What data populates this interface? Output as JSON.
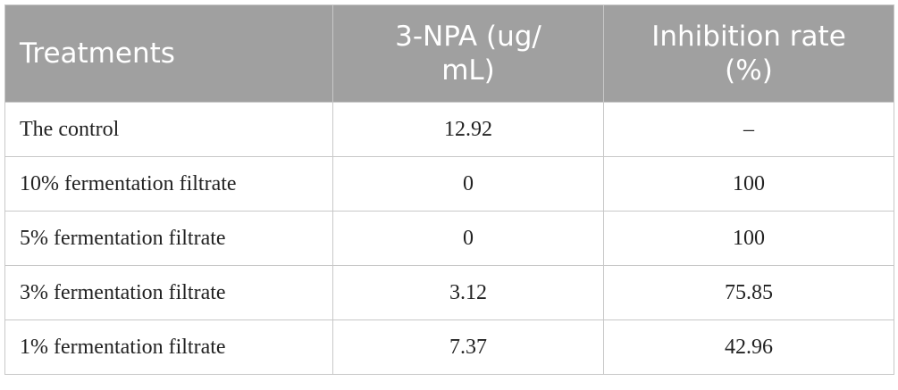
{
  "table": {
    "header": [
      "Treatments",
      "3-NPA (ug/ mL)",
      "Inhibition rate (%)"
    ],
    "rows": [
      [
        "The control",
        "12.92",
        "–"
      ],
      [
        "10% fermentation filtrate",
        "0",
        "100"
      ],
      [
        "5% fermentation filtrate",
        "0",
        "100"
      ],
      [
        "3% fermentation filtrate",
        "3.12",
        "75.85"
      ],
      [
        "1% fermentation filtrate",
        "7.37",
        "42.96"
      ]
    ]
  }
}
